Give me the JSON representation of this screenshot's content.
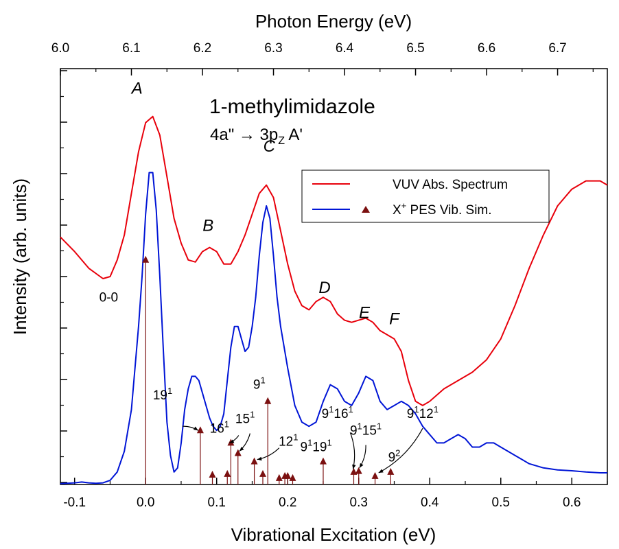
{
  "chart_data": {
    "type": "line",
    "title": "1-methylimidazole",
    "subtitle": {
      "pre": "4a\" → 3p",
      "sub": "Z",
      "post": " A'"
    },
    "xlabel": "Vibrational Excitation (eV)",
    "x2label": "Photon Energy (eV)",
    "ylabel": "Intensity (arb. units)",
    "xlim": [
      -0.12,
      0.65
    ],
    "x2lim": [
      6.0,
      6.77
    ],
    "ylim": [
      0,
      1
    ],
    "x_ticks": [
      "-0.1",
      "0.0",
      "0.1",
      "0.2",
      "0.3",
      "0.4",
      "0.5",
      "0.6"
    ],
    "x2_ticks": [
      "6.0",
      "6.1",
      "6.2",
      "6.3",
      "6.4",
      "6.5",
      "6.6",
      "6.7"
    ],
    "legend": {
      "placement": "upper-right",
      "entries": [
        {
          "label": "VUV Abs. Spectrum",
          "color": "#e8000b"
        },
        {
          "label": "X",
          "sup": "+",
          "rest": " PES Vib. Sim.",
          "color": "#0015d6",
          "marker_color": "#7b1010"
        }
      ]
    },
    "series": [
      {
        "name": "VUV Abs. Spectrum",
        "color": "#e8000b",
        "x": [
          -0.12,
          -0.1,
          -0.08,
          -0.06,
          -0.05,
          -0.04,
          -0.03,
          -0.02,
          -0.01,
          0.0,
          0.01,
          0.02,
          0.03,
          0.04,
          0.05,
          0.06,
          0.07,
          0.08,
          0.09,
          0.1,
          0.11,
          0.12,
          0.13,
          0.14,
          0.15,
          0.16,
          0.17,
          0.18,
          0.19,
          0.2,
          0.21,
          0.22,
          0.23,
          0.24,
          0.25,
          0.26,
          0.27,
          0.28,
          0.29,
          0.3,
          0.31,
          0.32,
          0.33,
          0.34,
          0.35,
          0.36,
          0.37,
          0.38,
          0.39,
          0.4,
          0.42,
          0.44,
          0.46,
          0.48,
          0.5,
          0.52,
          0.54,
          0.56,
          0.58,
          0.6,
          0.62,
          0.64,
          0.65
        ],
        "y": [
          0.595,
          0.56,
          0.52,
          0.495,
          0.5,
          0.54,
          0.6,
          0.7,
          0.8,
          0.87,
          0.885,
          0.84,
          0.74,
          0.64,
          0.58,
          0.54,
          0.535,
          0.56,
          0.57,
          0.56,
          0.53,
          0.53,
          0.56,
          0.6,
          0.65,
          0.7,
          0.72,
          0.69,
          0.61,
          0.53,
          0.465,
          0.43,
          0.42,
          0.44,
          0.45,
          0.44,
          0.41,
          0.395,
          0.39,
          0.395,
          0.4,
          0.39,
          0.37,
          0.36,
          0.35,
          0.32,
          0.25,
          0.2,
          0.19,
          0.2,
          0.23,
          0.25,
          0.27,
          0.3,
          0.35,
          0.43,
          0.52,
          0.6,
          0.67,
          0.71,
          0.73,
          0.73,
          0.72
        ]
      },
      {
        "name": "X+ PES Vib. Sim.",
        "color": "#0015d6",
        "x": [
          -0.12,
          -0.1,
          -0.09,
          -0.08,
          -0.07,
          -0.06,
          -0.05,
          -0.04,
          -0.03,
          -0.02,
          -0.01,
          -0.005,
          0.0,
          0.005,
          0.01,
          0.015,
          0.02,
          0.025,
          0.03,
          0.035,
          0.04,
          0.045,
          0.05,
          0.055,
          0.06,
          0.065,
          0.07,
          0.075,
          0.08,
          0.085,
          0.09,
          0.095,
          0.1,
          0.105,
          0.11,
          0.115,
          0.12,
          0.125,
          0.13,
          0.135,
          0.14,
          0.145,
          0.15,
          0.155,
          0.16,
          0.165,
          0.17,
          0.175,
          0.18,
          0.185,
          0.19,
          0.2,
          0.21,
          0.22,
          0.23,
          0.24,
          0.25,
          0.26,
          0.27,
          0.28,
          0.29,
          0.3,
          0.31,
          0.32,
          0.33,
          0.34,
          0.35,
          0.36,
          0.37,
          0.38,
          0.39,
          0.4,
          0.41,
          0.42,
          0.43,
          0.44,
          0.45,
          0.46,
          0.47,
          0.48,
          0.49,
          0.5,
          0.52,
          0.54,
          0.56,
          0.58,
          0.6,
          0.62,
          0.64,
          0.65
        ],
        "y": [
          0.002,
          0.004,
          0.006,
          0.004,
          0.003,
          0.004,
          0.01,
          0.03,
          0.08,
          0.18,
          0.38,
          0.5,
          0.65,
          0.75,
          0.75,
          0.66,
          0.5,
          0.32,
          0.15,
          0.07,
          0.03,
          0.04,
          0.1,
          0.18,
          0.23,
          0.26,
          0.26,
          0.25,
          0.22,
          0.19,
          0.16,
          0.14,
          0.13,
          0.14,
          0.17,
          0.25,
          0.33,
          0.38,
          0.38,
          0.35,
          0.32,
          0.33,
          0.38,
          0.45,
          0.55,
          0.63,
          0.67,
          0.64,
          0.55,
          0.45,
          0.38,
          0.28,
          0.19,
          0.15,
          0.14,
          0.15,
          0.2,
          0.24,
          0.23,
          0.2,
          0.19,
          0.22,
          0.26,
          0.25,
          0.2,
          0.18,
          0.19,
          0.2,
          0.19,
          0.17,
          0.14,
          0.12,
          0.1,
          0.1,
          0.11,
          0.12,
          0.11,
          0.09,
          0.09,
          0.1,
          0.1,
          0.09,
          0.07,
          0.05,
          0.04,
          0.035,
          0.033,
          0.03,
          0.028,
          0.028
        ]
      }
    ],
    "sticks": {
      "name": "X+ PES Vib. Sim.",
      "color": "#7b1010",
      "x": [
        0.0,
        0.077,
        0.094,
        0.115,
        0.12,
        0.13,
        0.153,
        0.165,
        0.172,
        0.188,
        0.196,
        0.2,
        0.207,
        0.25,
        0.293,
        0.3,
        0.323,
        0.345
      ],
      "y": [
        0.54,
        0.13,
        0.023,
        0.025,
        0.1,
        0.075,
        0.055,
        0.025,
        0.2,
        0.015,
        0.02,
        0.02,
        0.015,
        0.055,
        0.03,
        0.032,
        0.02,
        0.03
      ]
    },
    "annotations": {
      "peaks": [
        {
          "text": "A",
          "x": -0.012,
          "y": 0.94
        },
        {
          "text": "B",
          "x": 0.088,
          "y": 0.61
        },
        {
          "text": "C",
          "x": 0.174,
          "y": 0.8
        },
        {
          "text": "D",
          "x": 0.252,
          "y": 0.46
        },
        {
          "text": "E",
          "x": 0.308,
          "y": 0.4
        },
        {
          "text": "F",
          "x": 0.35,
          "y": 0.385
        }
      ],
      "stick_labels": [
        {
          "base": "0-0",
          "x": -0.052,
          "y": 0.44
        },
        {
          "base": "19",
          "sup": "1",
          "x": 0.024,
          "y": 0.205
        },
        {
          "base": "16",
          "sup": "1",
          "x": 0.104,
          "y": 0.125
        },
        {
          "base": "15",
          "sup": "1",
          "x": 0.14,
          "y": 0.148
        },
        {
          "base": "12",
          "sup": "1",
          "x": 0.201,
          "y": 0.093
        },
        {
          "base": "9",
          "sup": "1",
          "x": 0.16,
          "y": 0.23
        },
        {
          "base": "9",
          "sup": "1",
          "base2": "19",
          "sup2": "1",
          "x": 0.24,
          "y": 0.08
        },
        {
          "base": "9",
          "sup": "1",
          "base2": "16",
          "sup2": "1",
          "x": 0.27,
          "y": 0.16
        },
        {
          "base": "9",
          "sup": "1",
          "base2": "15",
          "sup2": "1",
          "x": 0.31,
          "y": 0.12
        },
        {
          "base": "9",
          "sup": "1",
          "base2": "12",
          "sup2": "1",
          "x": 0.39,
          "y": 0.16
        },
        {
          "base": "9",
          "sup": "2",
          "x": 0.35,
          "y": 0.055
        }
      ]
    }
  }
}
